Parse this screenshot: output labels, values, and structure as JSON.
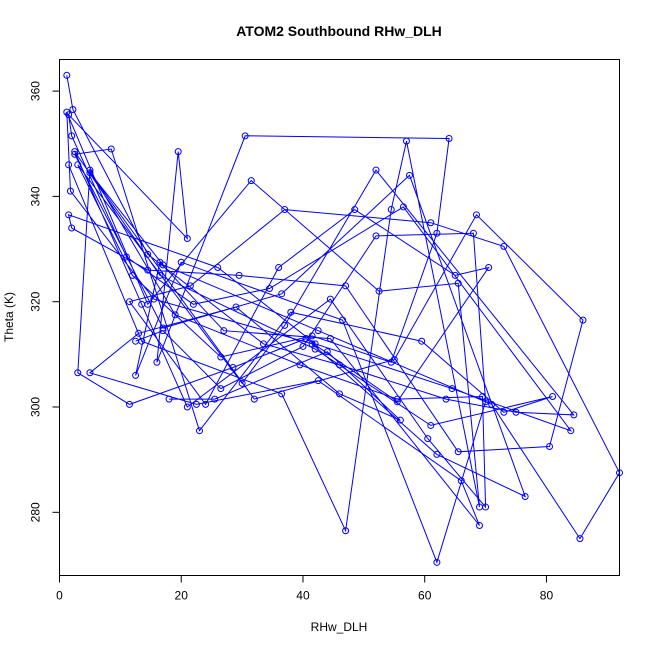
{
  "chart_data": {
    "type": "scatter",
    "title": "ATOM2 Southbound RHw_DLH",
    "xlabel": "RHw_DLH",
    "ylabel": "Theta (K)",
    "xlim": [
      0,
      92
    ],
    "ylim": [
      268,
      366
    ],
    "xticks": [
      0,
      20,
      40,
      60,
      80
    ],
    "yticks": [
      280,
      300,
      320,
      340,
      360
    ],
    "grid": false,
    "legend": "none",
    "color": "#0000ff",
    "connected": true,
    "series": [
      {
        "x": [
          1.2,
          2.2,
          14.5,
          33.5,
          46,
          63.5,
          75,
          84.5,
          52,
          37,
          30,
          3,
          12,
          26.5,
          41.5,
          54.5,
          62,
          64,
          30.5,
          16,
          19.5,
          21,
          1.5,
          2,
          11,
          22,
          34.5,
          56.5,
          84,
          64.5,
          42,
          26,
          1.5,
          2,
          14.5,
          29.5,
          47,
          65.5,
          80.5,
          86,
          68.5,
          55,
          32,
          5,
          17,
          42.5,
          71,
          85.5,
          92,
          73,
          61,
          37,
          21.5,
          11.5,
          24,
          36,
          48.5,
          65,
          70.5,
          55.5,
          40.5,
          28.5,
          11.5,
          3,
          5,
          19,
          39.5,
          55.5,
          69.5,
          70,
          60.5,
          44.5,
          21,
          13.5,
          2.5,
          16.5,
          42,
          61,
          81,
          73,
          59.5,
          38,
          23,
          8.5,
          2.5,
          17,
          36.5,
          57.5,
          76.5,
          62,
          41.5,
          15.5,
          1.8,
          1.2,
          14.5,
          31.5,
          52.5,
          65.5,
          69,
          57,
          54.5,
          47,
          36.5,
          13.5,
          1.5
        ],
        "y": [
          363,
          356.5,
          329,
          312,
          308,
          301.5,
          299,
          298.5,
          345,
          315.5,
          304.5,
          346,
          325,
          309.5,
          313.5,
          308.5,
          333,
          351,
          351.5,
          308.5,
          348.5,
          332,
          355.5,
          351.5,
          328.5,
          319.5,
          322.5,
          338,
          295.5,
          303.5,
          312,
          326.5,
          336.5,
          334,
          326,
          325,
          323,
          291.5,
          292.5,
          316.5,
          336.5,
          309,
          301.5,
          344.5,
          327,
          314.5,
          300.5,
          275,
          287.5,
          330.5,
          335,
          337.5,
          323,
          320,
          300.5,
          326.5,
          337.5,
          325,
          326.5,
          301,
          313,
          307.5,
          300.5,
          306.5,
          345,
          317.5,
          308,
          301.5,
          302,
          281,
          294,
          320.5,
          300,
          319.5,
          348.5,
          325,
          311,
          296.5,
          302,
          299,
          312.5,
          318,
          295.5,
          349,
          348,
          315,
          321.5,
          344,
          283,
          291,
          312,
          320.5,
          341,
          356,
          319.5,
          343,
          322,
          323.5,
          281,
          350.5,
          337.5,
          276.5,
          302.5,
          312.5,
          346
        ]
      },
      {
        "x": [
          12.5,
          17,
          26.5,
          40,
          52,
          68,
          70,
          62,
          46.5,
          20,
          12.5,
          16.5,
          27,
          44.5,
          69,
          66,
          42.5,
          22.5,
          5,
          13,
          29,
          46,
          56,
          44,
          25.5,
          18
        ],
        "y": [
          312.5,
          314.5,
          303.5,
          311.5,
          332.5,
          333,
          301,
          270.5,
          316.5,
          327.5,
          306,
          327.5,
          314.5,
          313,
          277.5,
          286,
          305,
          300.5,
          306.5,
          314,
          319,
          302.5,
          297.5,
          310.5,
          301.5,
          301.5
        ]
      }
    ]
  }
}
